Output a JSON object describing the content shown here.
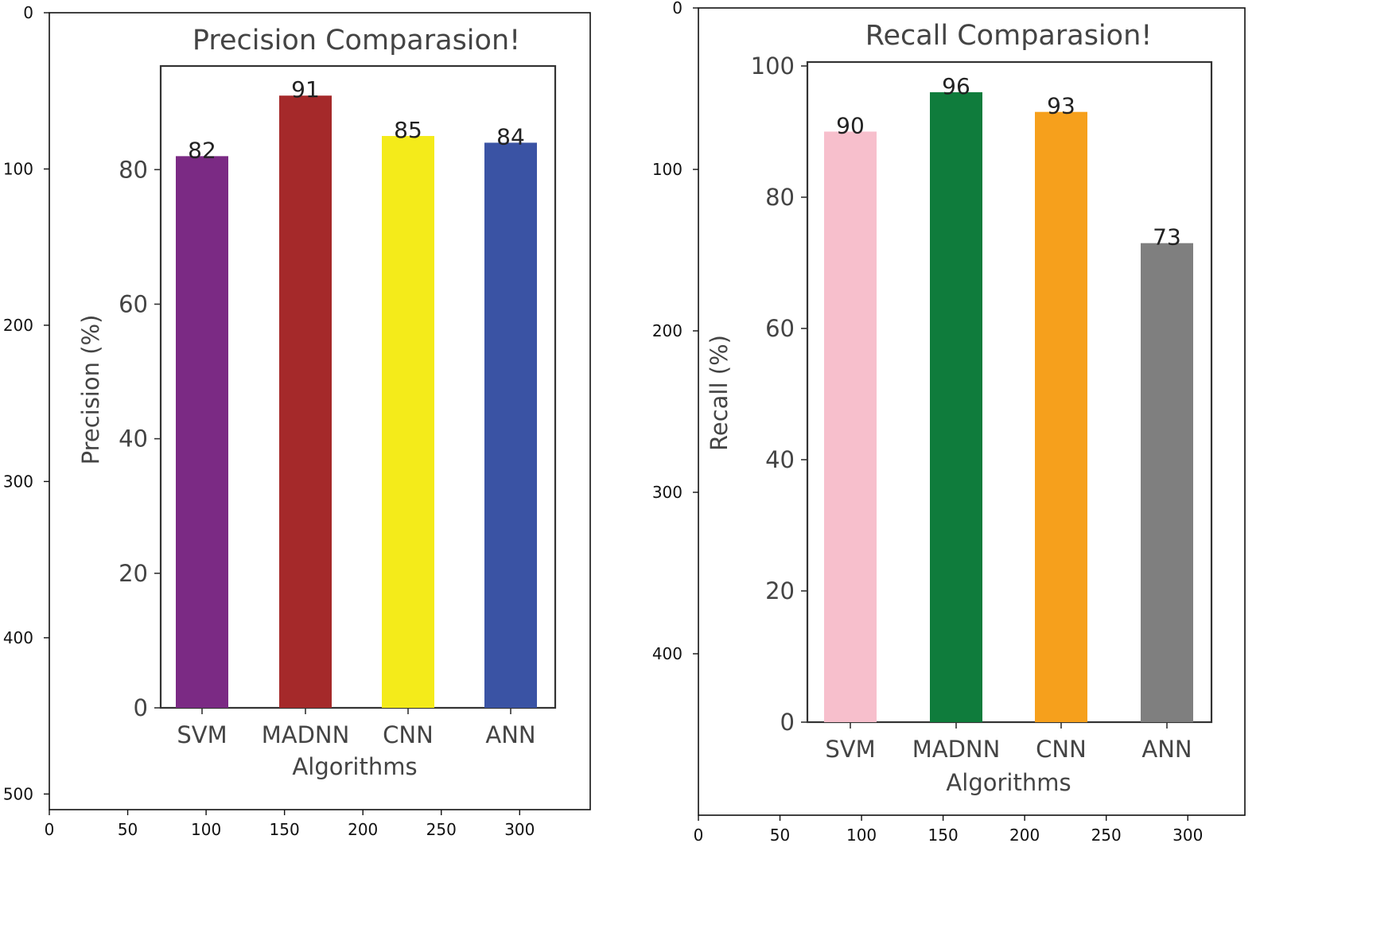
{
  "chart_data": [
    {
      "type": "bar",
      "title": "Precision Comparasion!",
      "xlabel": "Algorithms",
      "ylabel": "Precision (%)",
      "categories": [
        "SVM",
        "MADNN",
        "CNN",
        "ANN"
      ],
      "values": [
        82,
        91,
        85,
        84
      ],
      "value_labels": [
        "82",
        "91",
        "85",
        "84"
      ],
      "colors": [
        "#7b2a84",
        "#a5292a",
        "#f4eb1a",
        "#3a53a4"
      ],
      "ylim": [
        0,
        95.4
      ],
      "yticks": [
        "0",
        "20",
        "40",
        "60",
        "80"
      ],
      "outer_axes": {
        "xlim": [
          0,
          345
        ],
        "ylim": [
          510,
          0
        ],
        "xticks": [
          "0",
          "50",
          "100",
          "150",
          "200",
          "250",
          "300"
        ],
        "yticks": [
          "0",
          "100",
          "200",
          "300",
          "400",
          "500"
        ]
      }
    },
    {
      "type": "bar",
      "title": "Recall Comparasion!",
      "xlabel": "Algorithms",
      "ylabel": "Recall (%)",
      "categories": [
        "SVM",
        "MADNN",
        "CNN",
        "ANN"
      ],
      "values": [
        90,
        96,
        93,
        73
      ],
      "value_labels": [
        "90",
        "96",
        "93",
        "73"
      ],
      "colors": [
        "#f7bfcc",
        "#0f7c3c",
        "#f6a01c",
        "#7f7f7f"
      ],
      "ylim": [
        0,
        100.6
      ],
      "yticks": [
        "0",
        "20",
        "40",
        "60",
        "80",
        "100"
      ],
      "outer_axes": {
        "xlim": [
          0,
          335
        ],
        "ylim": [
          500,
          0
        ],
        "xticks": [
          "0",
          "50",
          "100",
          "150",
          "200",
          "250",
          "300"
        ],
        "yticks": [
          "0",
          "100",
          "200",
          "300",
          "400"
        ]
      }
    }
  ]
}
